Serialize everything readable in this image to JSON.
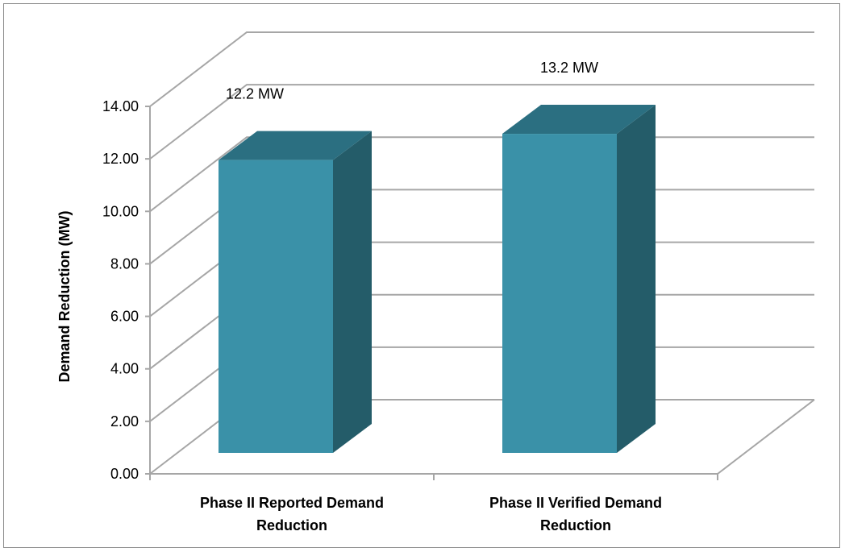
{
  "chart_data": {
    "type": "bar",
    "title": "",
    "xlabel": "",
    "ylabel": "Demand Reduction (MW)",
    "ylim": [
      0,
      14
    ],
    "yticks": [
      "0.00",
      "2.00",
      "4.00",
      "6.00",
      "8.00",
      "10.00",
      "12.00",
      "14.00"
    ],
    "categories": [
      [
        "Phase II Reported Demand",
        "Reduction"
      ],
      [
        "Phase II Verified Demand",
        "Reduction"
      ]
    ],
    "values": [
      12.2,
      13.2
    ],
    "data_labels": [
      "12.2 MW",
      "13.2 MW"
    ],
    "grid": true,
    "legend": "none",
    "three_d": true,
    "colors": {
      "bar_front": "#3a91a8",
      "bar_side": "#245c69",
      "bar_top": "#2b6f81",
      "grid": "#a6a6a6",
      "frame": "#8c8c8c"
    }
  }
}
